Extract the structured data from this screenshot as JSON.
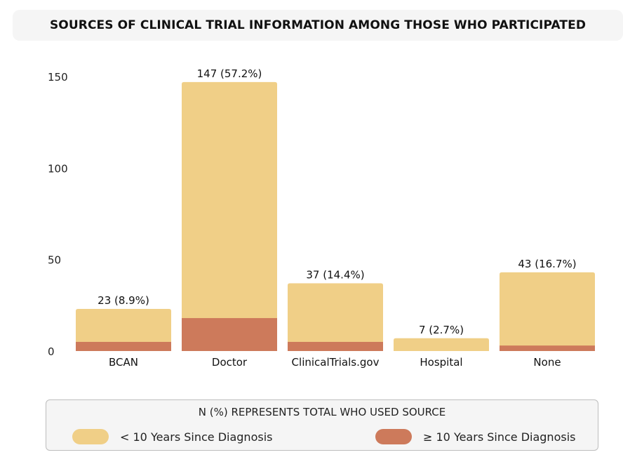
{
  "colors": {
    "lt10": "#f0cf87",
    "ge10": "#cd7a5b"
  },
  "chart_data": {
    "type": "bar",
    "stacked": true,
    "title": "SOURCES OF CLINICAL TRIAL INFORMATION AMONG THOSE WHO PARTICIPATED",
    "categories": [
      "BCAN",
      "Doctor",
      "ClinicalTrials.gov",
      "Hospital",
      "None"
    ],
    "series": [
      {
        "name": "< 10 Years Since Diagnosis",
        "values": [
          18,
          129,
          32,
          7,
          40
        ]
      },
      {
        "name": "≥ 10 Years Since Diagnosis",
        "values": [
          5,
          18,
          5,
          0,
          3
        ]
      }
    ],
    "totals": [
      23,
      147,
      37,
      7,
      43
    ],
    "data_labels": [
      "23 (8.9%)",
      "147 (57.2%)",
      "37 (14.4%)",
      "7 (2.7%)",
      "43 (16.7%)"
    ],
    "yticks": [
      0,
      50,
      100,
      150
    ],
    "ylim": [
      0,
      150
    ],
    "xlabel": "",
    "ylabel": "",
    "grid": false,
    "legend_position": "bottom"
  },
  "legend": {
    "note": "N (%) REPRESENTS TOTAL WHO USED SOURCE",
    "items": [
      {
        "label": "< 10 Years Since Diagnosis"
      },
      {
        "label": "≥ 10 Years Since Diagnosis"
      }
    ]
  }
}
